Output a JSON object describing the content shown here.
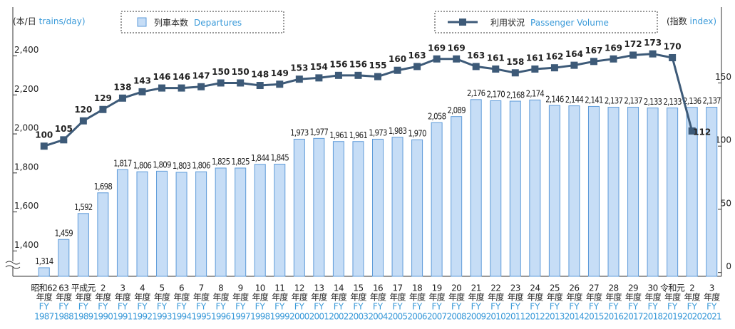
{
  "chart_data": {
    "type": "bar_line",
    "ylabel_ja": "(本/日",
    "ylabel_en": "trains/day)",
    "y2label_ja": "(指数",
    "y2label_en": "index)",
    "categories": [
      "1987",
      "1988",
      "1989",
      "1990",
      "1991",
      "1992",
      "1993",
      "1994",
      "1995",
      "1996",
      "1997",
      "1998",
      "1999",
      "2000",
      "2001",
      "2002",
      "2003",
      "2004",
      "2005",
      "2006",
      "2007",
      "2008",
      "2009",
      "2010",
      "2011",
      "2012",
      "2013",
      "2014",
      "2015",
      "2016",
      "2017",
      "2018",
      "2019",
      "2020",
      "2021"
    ],
    "category_era": [
      "昭和62",
      "63",
      "平成元",
      "2",
      "3",
      "4",
      "5",
      "6",
      "7",
      "8",
      "9",
      "10",
      "11",
      "12",
      "13",
      "14",
      "15",
      "16",
      "17",
      "18",
      "19",
      "20",
      "21",
      "22",
      "23",
      "24",
      "25",
      "26",
      "27",
      "28",
      "29",
      "30",
      "令和元",
      "2",
      "3"
    ],
    "era_suffix": "年度",
    "fy_prefix": "FY",
    "series": [
      {
        "name": "列車本数",
        "name_en": "Departures",
        "color": "#c6ddf6",
        "edge": "#5e9bd9",
        "values": [
          1314,
          1459,
          1592,
          1698,
          1817,
          1806,
          1809,
          1803,
          1806,
          1825,
          1825,
          1844,
          1845,
          1973,
          1977,
          1961,
          1961,
          1973,
          1983,
          1970,
          2058,
          2089,
          2176,
          2170,
          2168,
          2174,
          2146,
          2144,
          2141,
          2137,
          2137,
          2133,
          2133,
          2136,
          2137
        ],
        "value_labels": [
          "1,314",
          "1,459",
          "1,592",
          "1,698",
          "1,817",
          "1,806",
          "1,809",
          "1,803",
          "1,806",
          "1,825",
          "1,825",
          "1,844",
          "1,845",
          "1,973",
          "1,977",
          "1,961",
          "1,961",
          "1,973",
          "1,983",
          "1,970",
          "2,058",
          "2,089",
          "2,176",
          "2,170",
          "2,168",
          "2,174",
          "2,146",
          "2,144",
          "2,141",
          "2,137",
          "2,137",
          "2,133",
          "2,133",
          "2,136",
          "2,137"
        ]
      },
      {
        "name": "利用状況",
        "name_en": "Passenger Volume",
        "color": "#3d5a78",
        "axis": "y2",
        "values": [
          100,
          105,
          120,
          129,
          138,
          143,
          146,
          146,
          147,
          150,
          150,
          148,
          149,
          153,
          154,
          156,
          156,
          155,
          160,
          163,
          169,
          169,
          163,
          161,
          158,
          161,
          162,
          164,
          167,
          169,
          172,
          173,
          170,
          112,
          null
        ]
      }
    ],
    "ylim": [
      1270,
      2650
    ],
    "yticks": [
      {
        "value": 1400,
        "label": "1,400"
      },
      {
        "value": 1600,
        "label": "1,600"
      },
      {
        "value": 1800,
        "label": "1,800"
      },
      {
        "value": 2000,
        "label": "2,000"
      },
      {
        "value": 2200,
        "label": "2,200"
      },
      {
        "value": 2400,
        "label": "2,400"
      }
    ],
    "y2lim": [
      -3,
      210
    ],
    "y2ticks": [
      0,
      50,
      100,
      150
    ]
  }
}
